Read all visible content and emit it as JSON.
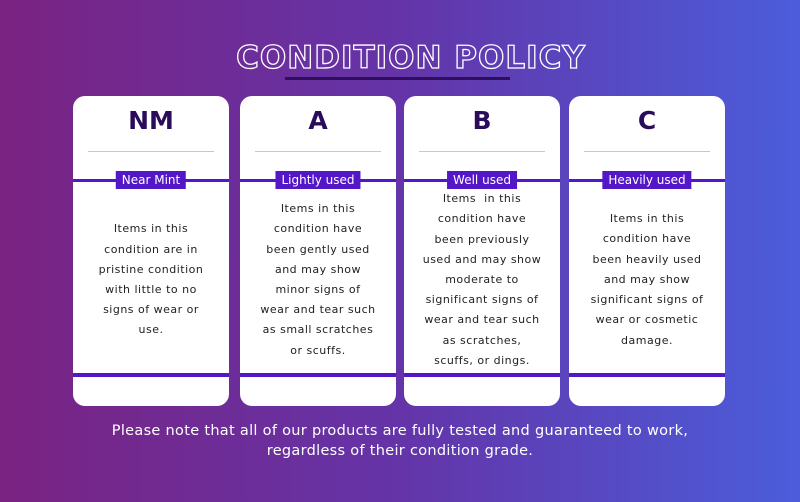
{
  "title": "CONDITION POLICY",
  "cards": [
    {
      "grade": "NM",
      "label": "Near Mint",
      "description": [
        "Items in this",
        "condition are in",
        "pristine condition",
        "with little to no",
        "signs of wear or",
        "use."
      ]
    },
    {
      "grade": "A",
      "label": "Lightly used",
      "description": [
        "Items in this",
        "condition have",
        "been gently used",
        "and may show",
        "minor signs of",
        "wear and tear such",
        "as small scratches",
        "or scuffs."
      ]
    },
    {
      "grade": "B",
      "label": "Well used",
      "description": [
        "Items  in this",
        "condition have",
        "been previously",
        "used and may show",
        "moderate to",
        "significant signs of",
        "wear and tear such",
        "as scratches,",
        "scuffs, or dings."
      ]
    },
    {
      "grade": "C",
      "label": "Heavily used",
      "description": [
        "Items in this",
        "condition have",
        "been heavily used",
        "and may show",
        "significant signs of",
        "wear or cosmetic",
        "damage."
      ]
    }
  ],
  "footer": [
    "Please note that all of our products are fully tested and guaranteed to work,",
    "regardless of their condition grade."
  ]
}
